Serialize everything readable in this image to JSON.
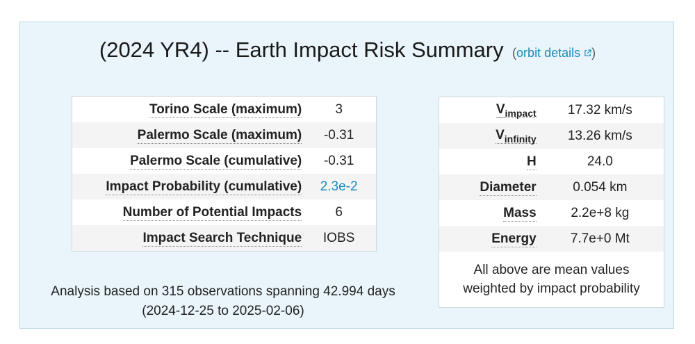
{
  "title": "(2024 YR4) -- Earth Impact Risk Summary",
  "orbit_open": "(",
  "orbit_link": "orbit details",
  "orbit_close": ")",
  "risk_table": [
    {
      "label": "Torino Scale (maximum)",
      "value": "3"
    },
    {
      "label": "Palermo Scale (maximum)",
      "value": "-0.31"
    },
    {
      "label": "Palermo Scale (cumulative)",
      "value": "-0.31"
    },
    {
      "label": "Impact Probability (cumulative)",
      "value": "2.3e-2"
    },
    {
      "label": "Number of Potential Impacts",
      "value": "6"
    },
    {
      "label": "Impact Search Technique",
      "value": "IOBS"
    }
  ],
  "physical_table": [
    {
      "label": "V",
      "sub": "impact",
      "value": "17.32 km/s"
    },
    {
      "label": "V",
      "sub": "infinity",
      "value": "13.26 km/s"
    },
    {
      "label": "H",
      "value": "24.0"
    },
    {
      "label": "Diameter",
      "value": "0.054 km"
    },
    {
      "label": "Mass",
      "value": "2.2e+8 kg"
    },
    {
      "label": "Energy",
      "value": "7.7e+0 Mt"
    }
  ],
  "physical_note_line1": "All above are mean values",
  "physical_note_line2": "weighted by impact probability",
  "analysis_line1": "Analysis based on 315 observations spanning 42.994 days",
  "analysis_line2": "(2024-12-25 to 2025-02-06)",
  "colors": {
    "link": "#1b8ab8",
    "panel_bg": "#e9f5fb",
    "panel_border": "#b8d7e6"
  },
  "icons": {
    "orbit_link": "external-link-icon"
  }
}
